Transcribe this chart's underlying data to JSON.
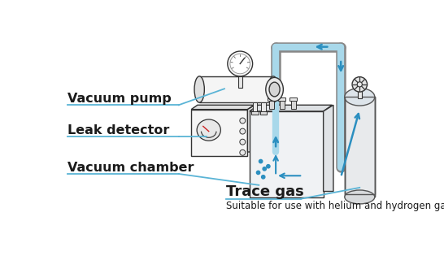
{
  "background_color": "#ffffff",
  "label_color": "#1a1a1a",
  "line_color": "#5ab4d6",
  "arrow_color": "#2b8fc0",
  "outline_color": "#333333",
  "fill_light": "#f5f5f5",
  "fill_mid": "#e8e8e8",
  "fill_dark": "#d8d8d8",
  "fill_top": "#e0e0e0",
  "blue_pipe": "#a8d8ea",
  "labels": {
    "vacuum_pump": "Vacuum pump",
    "leak_detector": "Leak detector",
    "vacuum_chamber": "Vacuum chamber",
    "trace_gas": "Trace gas",
    "subtitle": "Suitable for use with helium and hydrogen gases"
  },
  "label_fontsize": 11.5,
  "subtitle_fontsize": 8.5
}
